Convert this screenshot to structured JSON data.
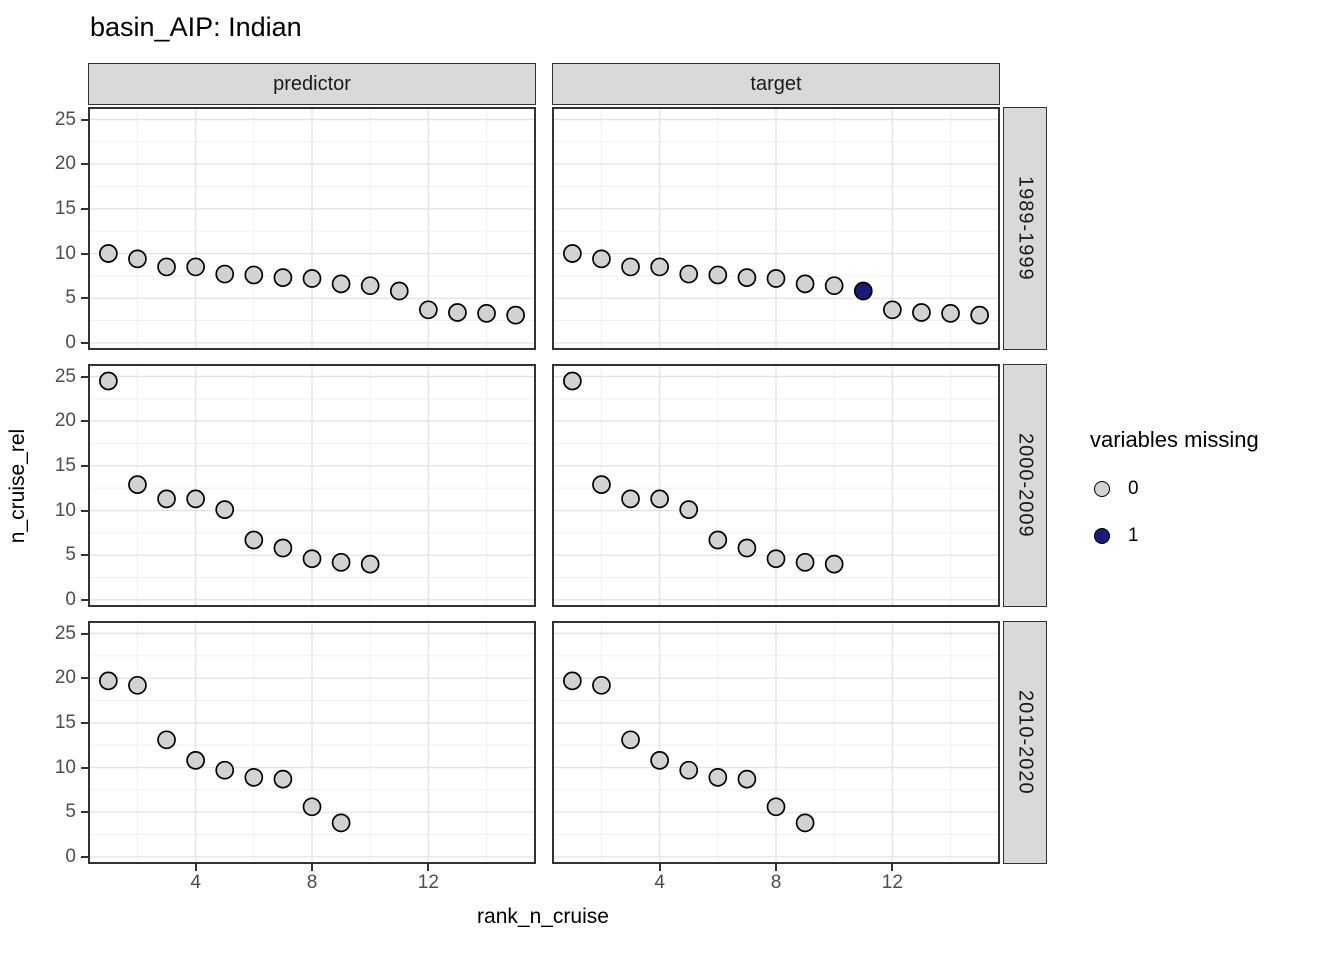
{
  "title": "basin_AIP: Indian",
  "chart_data": {
    "type": "scatter",
    "title": "basin_AIP: Indian",
    "xlabel": "rank_n_cruise",
    "ylabel": "n_cruise_rel",
    "facet_cols": [
      "predictor",
      "target"
    ],
    "facet_rows": [
      "1989-1999",
      "2000-2009",
      "2010-2020"
    ],
    "x_ticks": [
      4,
      8,
      12
    ],
    "y_ticks": [
      0,
      5,
      10,
      15,
      20,
      25
    ],
    "x_minor": [
      2,
      6,
      10,
      14
    ],
    "y_minor": [
      2.5,
      7.5,
      12.5,
      17.5,
      22.5
    ],
    "xlim": [
      0.3,
      15.7
    ],
    "ylim": [
      -0.8,
      26.4
    ],
    "grid": true,
    "legend": {
      "title": "variables missing",
      "position": "right",
      "entries": [
        {
          "label": "0",
          "color": "#d2d2d2"
        },
        {
          "label": "1",
          "color": "#1b1b78"
        }
      ]
    },
    "colors": {
      "point_fill_present": "#d2d2d2",
      "point_fill_missing": "#1b1b78",
      "point_stroke": "#000000",
      "strip_fill": "#d9d9d9",
      "panel_border": "#333333",
      "grid_major": "#e4e4e4",
      "grid_minor": "#f0f0f0",
      "tick_text": "#4d4d4d"
    },
    "panels": [
      {
        "col": "predictor",
        "row": "1989-1999",
        "x": [
          1,
          2,
          3,
          4,
          5,
          6,
          7,
          8,
          9,
          10,
          11,
          12,
          13,
          14,
          15
        ],
        "y": [
          10.0,
          9.4,
          8.5,
          8.5,
          7.7,
          7.6,
          7.3,
          7.2,
          6.6,
          6.4,
          5.8,
          3.7,
          3.4,
          3.3,
          3.1
        ],
        "missing": [
          0,
          0,
          0,
          0,
          0,
          0,
          0,
          0,
          0,
          0,
          0,
          0,
          0,
          0,
          0
        ]
      },
      {
        "col": "target",
        "row": "1989-1999",
        "x": [
          1,
          2,
          3,
          4,
          5,
          6,
          7,
          8,
          9,
          10,
          11,
          12,
          13,
          14,
          15
        ],
        "y": [
          10.0,
          9.4,
          8.5,
          8.5,
          7.7,
          7.6,
          7.3,
          7.2,
          6.6,
          6.4,
          5.8,
          3.7,
          3.4,
          3.3,
          3.1
        ],
        "missing": [
          0,
          0,
          0,
          0,
          0,
          0,
          0,
          0,
          0,
          0,
          1,
          0,
          0,
          0,
          0
        ]
      },
      {
        "col": "predictor",
        "row": "2000-2009",
        "x": [
          1,
          2,
          3,
          4,
          5,
          6,
          7,
          8,
          9,
          10
        ],
        "y": [
          24.5,
          12.9,
          11.3,
          11.3,
          10.1,
          6.7,
          5.8,
          4.6,
          4.2,
          4.0
        ],
        "missing": [
          0,
          0,
          0,
          0,
          0,
          0,
          0,
          0,
          0,
          0
        ]
      },
      {
        "col": "target",
        "row": "2000-2009",
        "x": [
          1,
          2,
          3,
          4,
          5,
          6,
          7,
          8,
          9,
          10
        ],
        "y": [
          24.5,
          12.9,
          11.3,
          11.3,
          10.1,
          6.7,
          5.8,
          4.6,
          4.2,
          4.0
        ],
        "missing": [
          0,
          0,
          0,
          0,
          0,
          0,
          0,
          0,
          0,
          0
        ]
      },
      {
        "col": "predictor",
        "row": "2010-2020",
        "x": [
          1,
          2,
          3,
          4,
          5,
          6,
          7,
          8,
          9
        ],
        "y": [
          19.7,
          19.2,
          13.1,
          10.8,
          9.7,
          8.9,
          8.7,
          5.6,
          3.8
        ],
        "missing": [
          0,
          0,
          0,
          0,
          0,
          0,
          0,
          0,
          0
        ]
      },
      {
        "col": "target",
        "row": "2010-2020",
        "x": [
          1,
          2,
          3,
          4,
          5,
          6,
          7,
          8,
          9
        ],
        "y": [
          19.7,
          19.2,
          13.1,
          10.8,
          9.7,
          8.9,
          8.7,
          5.6,
          3.8
        ],
        "missing": [
          0,
          0,
          0,
          0,
          0,
          0,
          0,
          0,
          0
        ]
      }
    ]
  }
}
